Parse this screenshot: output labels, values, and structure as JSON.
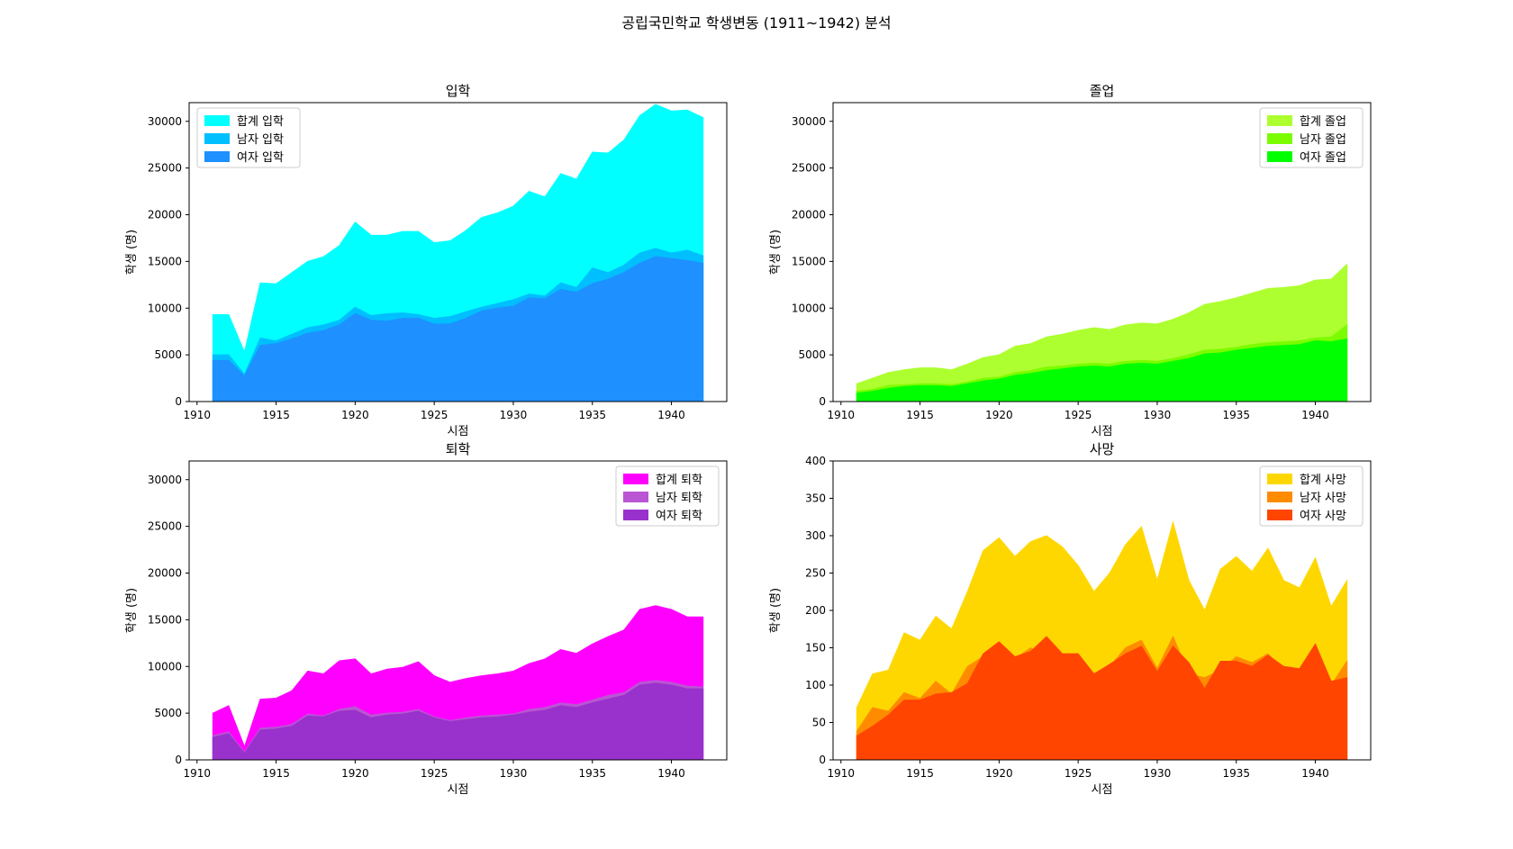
{
  "figure": {
    "title": "공립국민학교 학생변동 (1911~1942) 분석"
  },
  "chart_data": [
    {
      "type": "area",
      "title": "입학",
      "xlabel": "시점",
      "ylabel": "학생 (명)",
      "xlim": [
        1909.5,
        1943.5
      ],
      "ylim": [
        0,
        32000
      ],
      "xticks": [
        1910,
        1915,
        1920,
        1925,
        1930,
        1935,
        1940
      ],
      "yticks": [
        0,
        5000,
        10000,
        15000,
        20000,
        25000,
        30000
      ],
      "legend": "top-left",
      "x": [
        1911,
        1912,
        1913,
        1914,
        1915,
        1916,
        1917,
        1918,
        1919,
        1920,
        1921,
        1922,
        1923,
        1924,
        1925,
        1926,
        1927,
        1928,
        1929,
        1930,
        1931,
        1932,
        1933,
        1934,
        1935,
        1936,
        1937,
        1938,
        1939,
        1940,
        1941,
        1942
      ],
      "series": [
        {
          "name": "합계 입학",
          "color": "#00FFFF",
          "values": [
            9300,
            9300,
            5300,
            12700,
            12600,
            13800,
            15000,
            15500,
            16700,
            19200,
            17800,
            17800,
            18200,
            18200,
            17000,
            17200,
            18300,
            19700,
            20200,
            20900,
            22500,
            21900,
            24400,
            23800,
            26700,
            26600,
            28000,
            30600,
            31800,
            31100,
            31200,
            30400
          ]
        },
        {
          "name": "남자 입학",
          "color": "#00BFFF",
          "values": [
            5000,
            5000,
            2900,
            6800,
            6500,
            7200,
            7900,
            8200,
            8700,
            10100,
            9200,
            9400,
            9500,
            9300,
            8900,
            9100,
            9600,
            10100,
            10500,
            10900,
            11500,
            11300,
            12700,
            12200,
            14300,
            13800,
            14600,
            15900,
            16400,
            15900,
            16200,
            15600
          ]
        },
        {
          "name": "여자 입학",
          "color": "#1E90FF",
          "values": [
            4400,
            4400,
            2700,
            6000,
            6200,
            6700,
            7300,
            7600,
            8200,
            9400,
            8700,
            8600,
            8900,
            8900,
            8300,
            8300,
            8900,
            9700,
            10000,
            10200,
            11100,
            11000,
            12000,
            11700,
            12600,
            13100,
            13800,
            14800,
            15500,
            15300,
            15100,
            14800
          ]
        }
      ]
    },
    {
      "type": "area",
      "title": "졸업",
      "xlabel": "시점",
      "ylabel": "학생 (명)",
      "xlim": [
        1909.5,
        1943.5
      ],
      "ylim": [
        0,
        32000
      ],
      "xticks": [
        1910,
        1915,
        1920,
        1925,
        1930,
        1935,
        1940
      ],
      "yticks": [
        0,
        5000,
        10000,
        15000,
        20000,
        25000,
        30000
      ],
      "legend": "top-right",
      "x": [
        1911,
        1912,
        1913,
        1914,
        1915,
        1916,
        1917,
        1918,
        1919,
        1920,
        1921,
        1922,
        1923,
        1924,
        1925,
        1926,
        1927,
        1928,
        1929,
        1930,
        1931,
        1932,
        1933,
        1934,
        1935,
        1936,
        1937,
        1938,
        1939,
        1940,
        1941,
        1942
      ],
      "series": [
        {
          "name": "합계 졸업",
          "color": "#ADFF2F",
          "values": [
            1900,
            2500,
            3100,
            3400,
            3600,
            3600,
            3400,
            4000,
            4700,
            5000,
            5900,
            6200,
            6900,
            7200,
            7600,
            7900,
            7700,
            8200,
            8400,
            8300,
            8800,
            9500,
            10400,
            10700,
            11100,
            11600,
            12100,
            12200,
            12400,
            13000,
            13100,
            14700
          ]
        },
        {
          "name": "남자 졸업",
          "color": "#7CFC00",
          "values": [
            1100,
            1300,
            1700,
            1800,
            1900,
            1900,
            1800,
            2100,
            2500,
            2600,
            3100,
            3300,
            3700,
            3800,
            4000,
            4100,
            4000,
            4300,
            4400,
            4300,
            4600,
            5000,
            5500,
            5600,
            5800,
            6100,
            6300,
            6400,
            6500,
            6800,
            6900,
            8200
          ]
        },
        {
          "name": "여자 졸업",
          "color": "#00FF00",
          "values": [
            900,
            1100,
            1400,
            1600,
            1700,
            1700,
            1600,
            1900,
            2200,
            2400,
            2800,
            3000,
            3300,
            3500,
            3700,
            3800,
            3700,
            4000,
            4100,
            4000,
            4300,
            4600,
            5100,
            5200,
            5500,
            5700,
            5900,
            6000,
            6100,
            6500,
            6400,
            6700
          ]
        }
      ]
    },
    {
      "type": "area",
      "title": "퇴학",
      "xlabel": "시점",
      "ylabel": "학생 (명)",
      "xlim": [
        1909.5,
        1943.5
      ],
      "ylim": [
        0,
        32000
      ],
      "xticks": [
        1910,
        1915,
        1920,
        1925,
        1930,
        1935,
        1940
      ],
      "yticks": [
        0,
        5000,
        10000,
        15000,
        20000,
        25000,
        30000
      ],
      "legend": "top-right",
      "x": [
        1911,
        1912,
        1913,
        1914,
        1915,
        1916,
        1917,
        1918,
        1919,
        1920,
        1921,
        1922,
        1923,
        1924,
        1925,
        1926,
        1927,
        1928,
        1929,
        1930,
        1931,
        1932,
        1933,
        1934,
        1935,
        1936,
        1937,
        1938,
        1939,
        1940,
        1941,
        1942
      ],
      "series": [
        {
          "name": "합계 퇴학",
          "color": "#FF00FF",
          "values": [
            5000,
            5800,
            1400,
            6500,
            6600,
            7400,
            9500,
            9200,
            10600,
            10800,
            9200,
            9700,
            9900,
            10500,
            9000,
            8300,
            8700,
            9000,
            9200,
            9500,
            10300,
            10800,
            11800,
            11400,
            12400,
            13200,
            13900,
            16100,
            16500,
            16100,
            15300,
            15300
          ]
        },
        {
          "name": "남자 퇴학",
          "color": "#BA55D3",
          "values": [
            2600,
            3000,
            800,
            3400,
            3500,
            3800,
            4900,
            4700,
            5400,
            5700,
            4800,
            5000,
            5100,
            5400,
            4600,
            4200,
            4500,
            4700,
            4800,
            4900,
            5400,
            5600,
            6100,
            5900,
            6400,
            6900,
            7200,
            8300,
            8500,
            8300,
            7900,
            7800
          ]
        },
        {
          "name": "여자 퇴학",
          "color": "#9932CC",
          "values": [
            2400,
            2800,
            700,
            3200,
            3300,
            3600,
            4700,
            4600,
            5200,
            5300,
            4500,
            4800,
            4900,
            5200,
            4500,
            4100,
            4300,
            4500,
            4600,
            4800,
            5100,
            5300,
            5800,
            5600,
            6100,
            6500,
            6900,
            8000,
            8200,
            8000,
            7600,
            7600
          ]
        }
      ]
    },
    {
      "type": "area",
      "title": "사망",
      "xlabel": "시점",
      "ylabel": "학생 (명)",
      "xlim": [
        1909.5,
        1943.5
      ],
      "ylim": [
        0,
        400
      ],
      "xticks": [
        1910,
        1915,
        1920,
        1925,
        1930,
        1935,
        1940
      ],
      "yticks": [
        0,
        50,
        100,
        150,
        200,
        250,
        300,
        350,
        400
      ],
      "legend": "top-right",
      "x": [
        1911,
        1912,
        1913,
        1914,
        1915,
        1916,
        1917,
        1918,
        1919,
        1920,
        1921,
        1922,
        1923,
        1924,
        1925,
        1926,
        1927,
        1928,
        1929,
        1930,
        1931,
        1932,
        1933,
        1934,
        1935,
        1936,
        1937,
        1938,
        1939,
        1940,
        1941,
        1942
      ],
      "series": [
        {
          "name": "합계 사망",
          "color": "#FFD700",
          "values": [
            70,
            115,
            120,
            170,
            160,
            192,
            175,
            225,
            280,
            297,
            272,
            292,
            300,
            285,
            260,
            225,
            250,
            288,
            312,
            240,
            318,
            240,
            200,
            255,
            272,
            252,
            283,
            240,
            230,
            270,
            205,
            240
          ]
        },
        {
          "name": "남자 사망",
          "color": "#FF8C00",
          "values": [
            38,
            70,
            65,
            90,
            82,
            105,
            88,
            125,
            138,
            140,
            135,
            150,
            135,
            140,
            118,
            115,
            125,
            150,
            160,
            122,
            165,
            115,
            110,
            120,
            138,
            130,
            142,
            120,
            105,
            118,
            100,
            132
          ]
        },
        {
          "name": "여자 사망",
          "color": "#FF4500",
          "values": [
            32,
            45,
            60,
            80,
            80,
            88,
            90,
            102,
            142,
            158,
            138,
            145,
            165,
            142,
            142,
            115,
            128,
            142,
            152,
            118,
            152,
            130,
            95,
            132,
            132,
            125,
            140,
            125,
            122,
            155,
            105,
            110
          ]
        }
      ]
    }
  ]
}
